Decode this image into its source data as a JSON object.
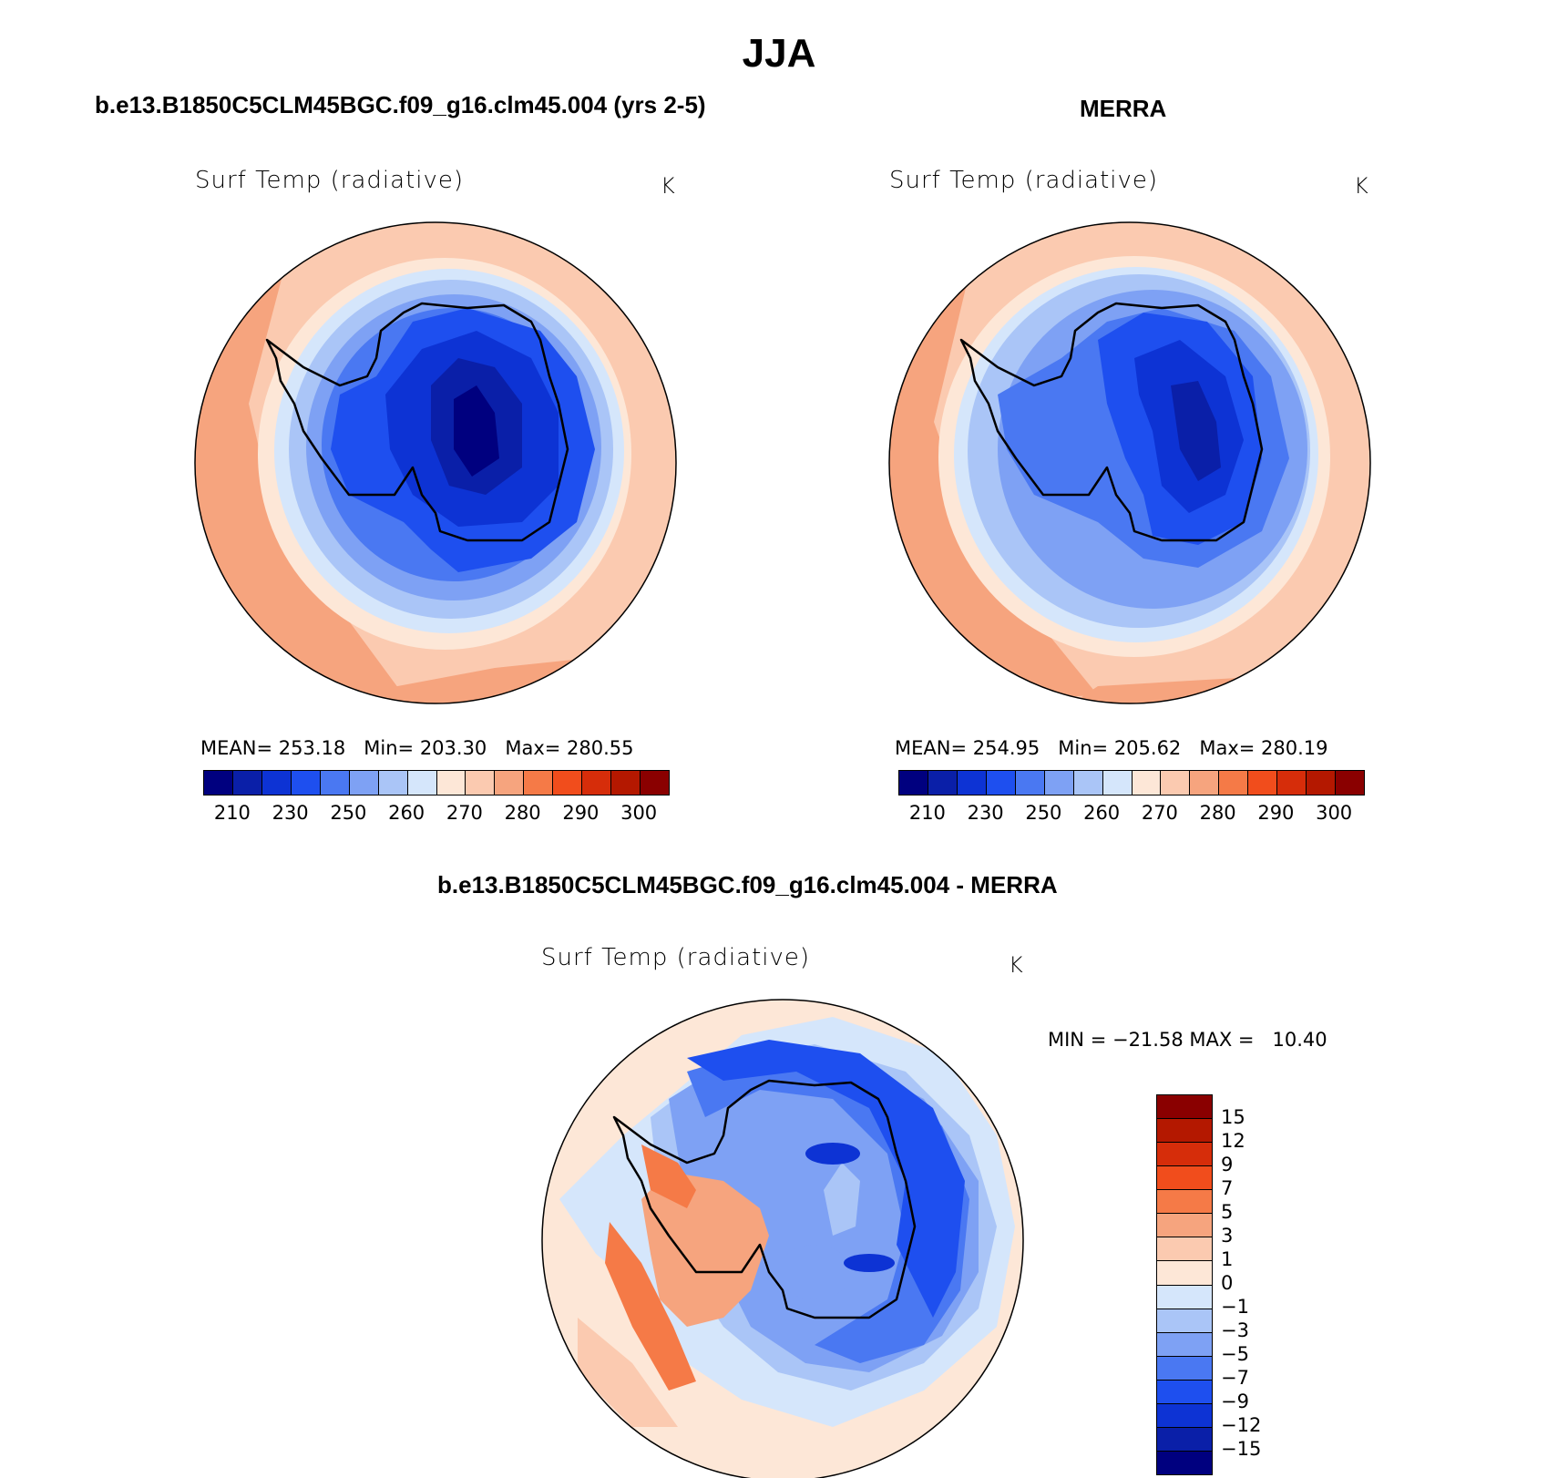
{
  "page": {
    "season": "JJA",
    "left_title": "b.e13.B1850C5CLM45BGC.f09_g16.clm45.004 (yrs 2-5)",
    "right_title": "MERRA",
    "diff_title": "b.e13.B1850C5CLM45BGC.f09_g16.clm45.004 - MERRA"
  },
  "panels": {
    "model": {
      "variable": "Surf Temp (radiative)",
      "units": "K",
      "mean_label": "MEAN=",
      "mean": "253.18",
      "min_label": "Min=",
      "min": "203.30",
      "max_label": "Max=",
      "max": "280.55"
    },
    "merra": {
      "variable": "Surf Temp (radiative)",
      "units": "K",
      "mean_label": "MEAN=",
      "mean": "254.95",
      "min_label": "Min=",
      "min": "205.62",
      "max_label": "Max=",
      "max": "280.19"
    },
    "diff": {
      "variable": "Surf Temp (radiative)",
      "units": "K",
      "minmax_text": "MIN = −21.58 MAX =   10.40"
    }
  },
  "abs_colorbar": {
    "colors": [
      "#00007f",
      "#0a1fa8",
      "#0d33d4",
      "#1e4fef",
      "#4a78f2",
      "#7ea1f4",
      "#aac5f7",
      "#d5e6fb",
      "#fde7d7",
      "#fbcab0",
      "#f6a47e",
      "#f57a47",
      "#f14d1c",
      "#d62d0a",
      "#b41800",
      "#8a0000"
    ],
    "labels": [
      "210",
      "230",
      "250",
      "260",
      "270",
      "280",
      "290",
      "300"
    ]
  },
  "diff_colorbar": {
    "colors": [
      "#8a0000",
      "#b41800",
      "#d62d0a",
      "#f14d1c",
      "#f57a47",
      "#f6a47e",
      "#fbcab0",
      "#fde7d7",
      "#d5e6fb",
      "#aac5f7",
      "#7ea1f4",
      "#4a78f2",
      "#1e4fef",
      "#0d33d4",
      "#0a1fa8",
      "#00007f"
    ],
    "labels": [
      "15",
      "12",
      "9",
      "7",
      "5",
      "3",
      "1",
      "0",
      "−1",
      "−3",
      "−5",
      "−7",
      "−9",
      "−12",
      "−15"
    ]
  }
}
